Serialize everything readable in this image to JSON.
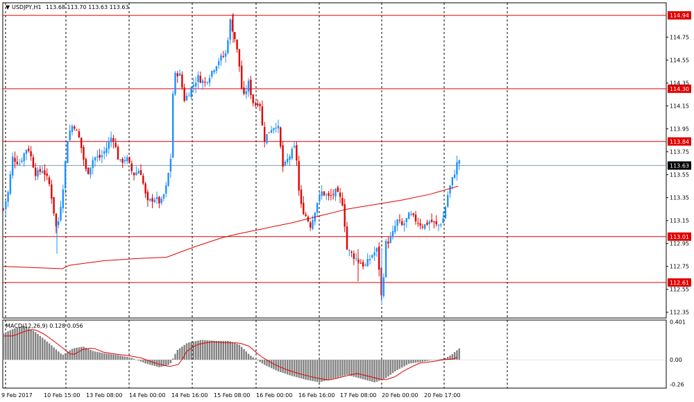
{
  "header": {
    "symbol": "USDJPY,H1",
    "ohlc": "113.68 113.70 113.63 113.63",
    "indicator": "MACD(12,26,9) 0.128 0.056"
  },
  "colors": {
    "up": "#1e90ff",
    "down": "#e00000",
    "level_line": "#e00000",
    "ma_line": "#e00000",
    "last_price_line": "#7a9bb5",
    "histogram": "#808080",
    "signal": "#e00000"
  },
  "chart_data": [
    {
      "type": "candlestick",
      "title": "USDJPY,H1",
      "ylim": [
        112.3,
        115.05
      ],
      "y_ticks": [
        "114.75",
        "114.55",
        "114.35",
        "114.15",
        "113.95",
        "113.75",
        "113.55",
        "113.35",
        "113.15",
        "112.95",
        "112.75",
        "112.55",
        "112.35"
      ],
      "x_ticks": [
        "9 Feb 2017",
        "10 Feb 15:00",
        "13 Feb 08:00",
        "14 Feb 00:00",
        "14 Feb 16:00",
        "15 Feb 08:00",
        "16 Feb 00:00",
        "16 Feb 16:00",
        "17 Feb 08:00",
        "20 Feb 00:00",
        "20 Feb 17:00"
      ],
      "levels": [
        "114.94",
        "114.30",
        "113.84",
        "113.01",
        "112.61"
      ],
      "last_price": "113.63",
      "moving_average": [
        {
          "x": 0,
          "y": 112.75
        },
        {
          "x": 20,
          "y": 112.74
        },
        {
          "x": 40,
          "y": 112.74
        },
        {
          "x": 60,
          "y": 112.74
        },
        {
          "x": 80,
          "y": 112.78
        },
        {
          "x": 100,
          "y": 112.8
        },
        {
          "x": 120,
          "y": 112.81
        },
        {
          "x": 140,
          "y": 112.83
        },
        {
          "x": 160,
          "y": 112.89
        },
        {
          "x": 180,
          "y": 112.96
        },
        {
          "x": 200,
          "y": 113.01
        },
        {
          "x": 220,
          "y": 113.06
        },
        {
          "x": 240,
          "y": 113.11
        },
        {
          "x": 260,
          "y": 113.15
        },
        {
          "x": 280,
          "y": 113.19
        },
        {
          "x": 300,
          "y": 113.23
        },
        {
          "x": 320,
          "y": 113.26
        },
        {
          "x": 340,
          "y": 113.31
        },
        {
          "x": 360,
          "y": 113.39
        },
        {
          "x": 380,
          "y": 113.45
        }
      ]
    },
    {
      "type": "bar",
      "title": "MACD(12,26,9) 0.128 0.056",
      "ylim": [
        -0.3,
        0.42
      ],
      "y_ticks": [
        "0.401",
        "0.00",
        "-0.26"
      ]
    }
  ]
}
